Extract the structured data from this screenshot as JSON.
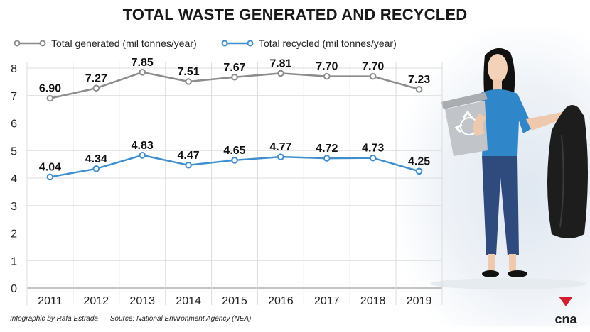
{
  "title": "TOTAL WASTE GENERATED AND RECYCLED",
  "legend": {
    "generated": "Total generated (mil tonnes/year)",
    "recycled": "Total recycled (mil tonnes/year)"
  },
  "credit": {
    "infographic": "Infographic by Rafa Estrada",
    "source": "Source: National Environment Agency (NEA)"
  },
  "logo_text": "cna",
  "icons": [
    "recycle-bin-icon",
    "trash-bag-icon",
    "cna-logo-icon"
  ],
  "colors": {
    "generated": "#8c8c8c",
    "recycled": "#3f8fcf",
    "grid": "#dcdcdc",
    "logo": "#d0202f"
  },
  "chart_data": {
    "type": "line",
    "title": "TOTAL WASTE GENERATED AND RECYCLED",
    "x": [
      "2011",
      "2012",
      "2013",
      "2014",
      "2015",
      "2016",
      "2017",
      "2018",
      "2019"
    ],
    "yticks": [
      "0",
      "1",
      "2",
      "3",
      "4",
      "5",
      "6",
      "7",
      "8"
    ],
    "ylim": [
      0,
      8
    ],
    "grid": true,
    "legend_position": "top-left",
    "series": [
      {
        "name": "Total generated (mil tonnes/year)",
        "values": [
          6.9,
          7.27,
          7.85,
          7.51,
          7.67,
          7.81,
          7.7,
          7.7,
          7.23
        ],
        "labels": [
          "6.90",
          "7.27",
          "7.85",
          "7.51",
          "7.67",
          "7.81",
          "7.70",
          "7.70",
          "7.23"
        ]
      },
      {
        "name": "Total recycled (mil tonnes/year)",
        "values": [
          4.04,
          4.34,
          4.83,
          4.47,
          4.65,
          4.77,
          4.72,
          4.73,
          4.25
        ],
        "labels": [
          "4.04",
          "4.34",
          "4.83",
          "4.47",
          "4.65",
          "4.77",
          "4.72",
          "4.73",
          "4.25"
        ]
      }
    ]
  }
}
